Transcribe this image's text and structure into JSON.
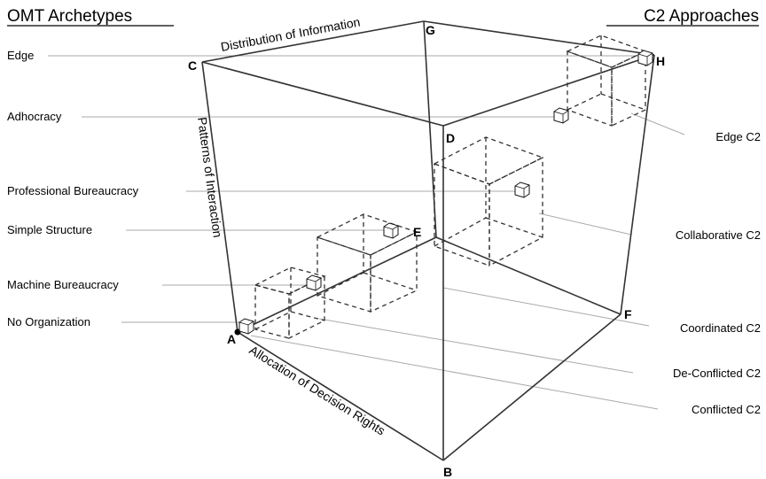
{
  "headers": {
    "left": "OMT Archetypes",
    "right": "C2 Approaches"
  },
  "axes": {
    "distribution": "Distribution of Information",
    "interaction": "Patterns of Interaction",
    "allocation": "Allocation of Decision Rights"
  },
  "vertices": {
    "a": "A",
    "b": "B",
    "c": "C",
    "d": "D",
    "e": "E",
    "f": "F",
    "g": "G",
    "h": "H"
  },
  "archetypes": [
    "Edge",
    "Adhocracy",
    "Professional Bureaucracy",
    "Simple Structure",
    "Machine Bureaucracy",
    "No Organization"
  ],
  "approaches": [
    "Edge C2",
    "Collaborative C2",
    "Coordinated C2",
    "De-Conflicted C2",
    "Conflicted C2"
  ]
}
